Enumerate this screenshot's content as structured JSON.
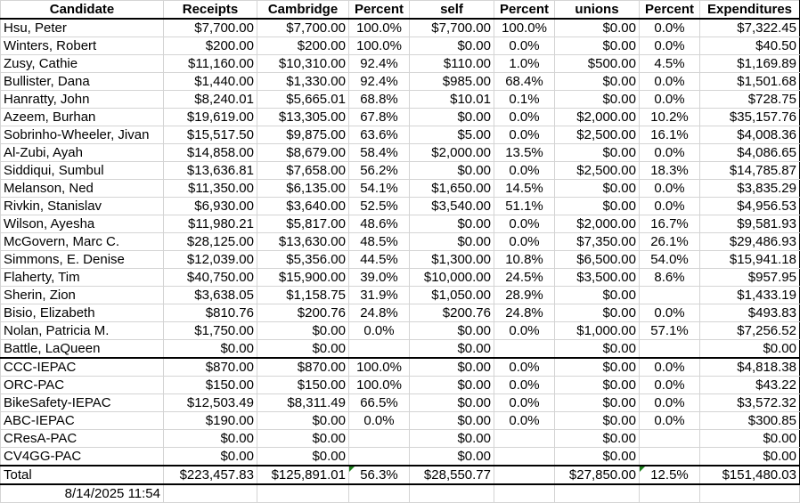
{
  "headers": [
    "Candidate",
    "Receipts",
    "Cambridge",
    "Percent",
    "self",
    "Percent",
    "unions",
    "Percent",
    "Expenditures"
  ],
  "candidates": [
    [
      "Hsu, Peter",
      "$7,700.00",
      "$7,700.00",
      "100.0%",
      "$7,700.00",
      "100.0%",
      "$0.00",
      "0.0%",
      "$7,322.45"
    ],
    [
      "Winters, Robert",
      "$200.00",
      "$200.00",
      "100.0%",
      "$0.00",
      "0.0%",
      "$0.00",
      "0.0%",
      "$40.50"
    ],
    [
      "Zusy, Cathie",
      "$11,160.00",
      "$10,310.00",
      "92.4%",
      "$110.00",
      "1.0%",
      "$500.00",
      "4.5%",
      "$1,169.89"
    ],
    [
      "Bullister, Dana",
      "$1,440.00",
      "$1,330.00",
      "92.4%",
      "$985.00",
      "68.4%",
      "$0.00",
      "0.0%",
      "$1,501.68"
    ],
    [
      "Hanratty, John",
      "$8,240.01",
      "$5,665.01",
      "68.8%",
      "$10.01",
      "0.1%",
      "$0.00",
      "0.0%",
      "$728.75"
    ],
    [
      "Azeem, Burhan",
      "$19,619.00",
      "$13,305.00",
      "67.8%",
      "$0.00",
      "0.0%",
      "$2,000.00",
      "10.2%",
      "$35,157.76"
    ],
    [
      "Sobrinho-Wheeler, Jivan",
      "$15,517.50",
      "$9,875.00",
      "63.6%",
      "$5.00",
      "0.0%",
      "$2,500.00",
      "16.1%",
      "$4,008.36"
    ],
    [
      "Al-Zubi, Ayah",
      "$14,858.00",
      "$8,679.00",
      "58.4%",
      "$2,000.00",
      "13.5%",
      "$0.00",
      "0.0%",
      "$4,086.65"
    ],
    [
      "Siddiqui, Sumbul",
      "$13,636.81",
      "$7,658.00",
      "56.2%",
      "$0.00",
      "0.0%",
      "$2,500.00",
      "18.3%",
      "$14,785.87"
    ],
    [
      "Melanson, Ned",
      "$11,350.00",
      "$6,135.00",
      "54.1%",
      "$1,650.00",
      "14.5%",
      "$0.00",
      "0.0%",
      "$3,835.29"
    ],
    [
      "Rivkin, Stanislav",
      "$6,930.00",
      "$3,640.00",
      "52.5%",
      "$3,540.00",
      "51.1%",
      "$0.00",
      "0.0%",
      "$4,956.53"
    ],
    [
      "Wilson, Ayesha",
      "$11,980.21",
      "$5,817.00",
      "48.6%",
      "$0.00",
      "0.0%",
      "$2,000.00",
      "16.7%",
      "$9,581.93"
    ],
    [
      "McGovern, Marc C.",
      "$28,125.00",
      "$13,630.00",
      "48.5%",
      "$0.00",
      "0.0%",
      "$7,350.00",
      "26.1%",
      "$29,486.93"
    ],
    [
      "Simmons, E. Denise",
      "$12,039.00",
      "$5,356.00",
      "44.5%",
      "$1,300.00",
      "10.8%",
      "$6,500.00",
      "54.0%",
      "$15,941.18"
    ],
    [
      "Flaherty, Tim",
      "$40,750.00",
      "$15,900.00",
      "39.0%",
      "$10,000.00",
      "24.5%",
      "$3,500.00",
      "8.6%",
      "$957.95"
    ],
    [
      "Sherin, Zion",
      "$3,638.05",
      "$1,158.75",
      "31.9%",
      "$1,050.00",
      "28.9%",
      "$0.00",
      "",
      "$1,433.19"
    ],
    [
      "Bisio, Elizabeth",
      "$810.76",
      "$200.76",
      "24.8%",
      "$200.76",
      "24.8%",
      "$0.00",
      "0.0%",
      "$493.83"
    ],
    [
      "Nolan, Patricia M.",
      "$1,750.00",
      "$0.00",
      "0.0%",
      "$0.00",
      "0.0%",
      "$1,000.00",
      "57.1%",
      "$7,256.52"
    ],
    [
      "Battle, LaQueen",
      "$0.00",
      "$0.00",
      "",
      "$0.00",
      "",
      "$0.00",
      "",
      "$0.00"
    ]
  ],
  "pacs": [
    [
      "CCC-IEPAC",
      "$870.00",
      "$870.00",
      "100.0%",
      "$0.00",
      "0.0%",
      "$0.00",
      "0.0%",
      "$4,818.38"
    ],
    [
      "ORC-PAC",
      "$150.00",
      "$150.00",
      "100.0%",
      "$0.00",
      "0.0%",
      "$0.00",
      "0.0%",
      "$43.22"
    ],
    [
      "BikeSafety-IEPAC",
      "$12,503.49",
      "$8,311.49",
      "66.5%",
      "$0.00",
      "0.0%",
      "$0.00",
      "0.0%",
      "$3,572.32"
    ],
    [
      "ABC-IEPAC",
      "$190.00",
      "$0.00",
      "0.0%",
      "$0.00",
      "0.0%",
      "$0.00",
      "0.0%",
      "$300.85"
    ],
    [
      "CResA-PAC",
      "$0.00",
      "$0.00",
      "",
      "$0.00",
      "",
      "$0.00",
      "",
      "$0.00"
    ],
    [
      "CV4GG-PAC",
      "$0.00",
      "$0.00",
      "",
      "$0.00",
      "",
      "$0.00",
      "",
      "$0.00"
    ]
  ],
  "total": [
    "Total",
    "$223,457.83",
    "$125,891.01",
    "56.3%",
    "$28,550.77",
    "",
    "$27,850.00",
    "12.5%",
    "$151,480.03"
  ],
  "timestamp": "8/14/2025 11:54",
  "colors": {
    "grid": "#d4d4d4",
    "border": "#000000",
    "error_marker": "#1a7f1a"
  }
}
